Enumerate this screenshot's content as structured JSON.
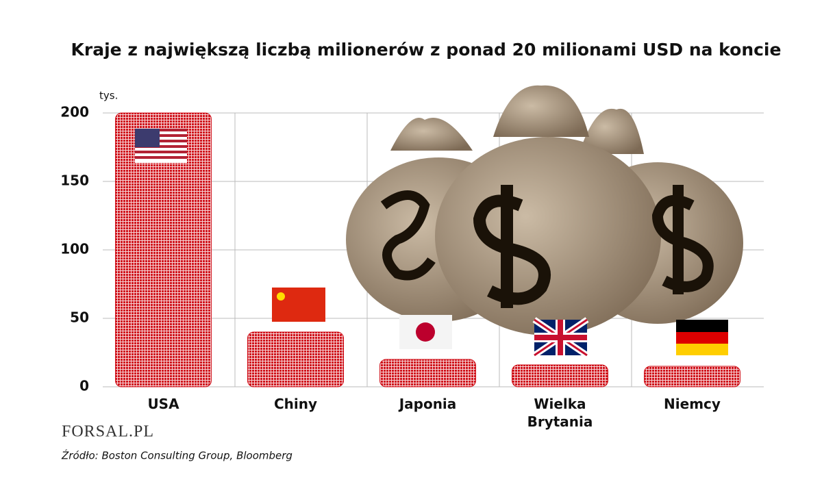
{
  "chart_data": {
    "type": "bar",
    "title": "Kraje z największą liczbą milionerów  z ponad 20 milionami USD na koncie",
    "y_unit": "tys.",
    "categories": [
      "USA",
      "Chiny",
      "Japonia",
      "Wielka Brytania",
      "Niemcy"
    ],
    "values": [
      200,
      40,
      20,
      16,
      15
    ],
    "color": "#d0121b",
    "ylim": [
      0,
      200
    ],
    "yticks": [
      0,
      50,
      100,
      150,
      200
    ],
    "grid": true,
    "logo": "FORSAL.PL",
    "source": "Źródło: Boston Consulting Group, Bloomberg"
  }
}
